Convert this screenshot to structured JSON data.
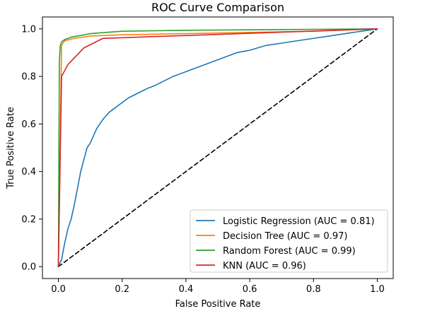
{
  "chart_data": {
    "type": "line",
    "title": "ROC Curve Comparison",
    "xlabel": "False Positive Rate",
    "ylabel": "True Positive Rate",
    "xlim": [
      -0.05,
      1.05
    ],
    "ylim": [
      -0.05,
      1.05
    ],
    "xticks": [
      "0.0",
      "0.2",
      "0.4",
      "0.6",
      "0.8",
      "1.0"
    ],
    "yticks": [
      "0.0",
      "0.2",
      "0.4",
      "0.6",
      "0.8",
      "1.0"
    ],
    "grid": false,
    "legend_position": "lower-right",
    "series": [
      {
        "name": "Logistic Regression (AUC = 0.81)",
        "color": "#1f77b4",
        "x": [
          0.0,
          0.01,
          0.02,
          0.03,
          0.04,
          0.05,
          0.06,
          0.07,
          0.08,
          0.09,
          0.1,
          0.12,
          0.14,
          0.16,
          0.18,
          0.2,
          0.22,
          0.25,
          0.28,
          0.3,
          0.33,
          0.36,
          0.4,
          0.44,
          0.48,
          0.52,
          0.56,
          0.6,
          0.65,
          0.7,
          0.75,
          0.8,
          0.85,
          0.9,
          0.95,
          1.0
        ],
        "y": [
          0.0,
          0.03,
          0.1,
          0.16,
          0.2,
          0.26,
          0.33,
          0.4,
          0.45,
          0.5,
          0.52,
          0.58,
          0.62,
          0.65,
          0.67,
          0.69,
          0.71,
          0.73,
          0.75,
          0.76,
          0.78,
          0.8,
          0.82,
          0.84,
          0.86,
          0.88,
          0.9,
          0.91,
          0.93,
          0.94,
          0.95,
          0.96,
          0.97,
          0.98,
          0.99,
          1.0
        ]
      },
      {
        "name": "Decision Tree (AUC = 0.97)",
        "color": "#ff7f0e",
        "x": [
          0.0,
          0.01,
          0.02,
          0.05,
          0.1,
          0.2,
          0.4,
          0.6,
          0.8,
          0.9,
          1.0
        ],
        "y": [
          0.0,
          0.93,
          0.95,
          0.96,
          0.97,
          0.975,
          0.98,
          0.985,
          0.99,
          0.995,
          1.0
        ]
      },
      {
        "name": "Random Forest (AUC = 0.99)",
        "color": "#2ca02c",
        "x": [
          0.0,
          0.003,
          0.006,
          0.01,
          0.02,
          0.04,
          0.06,
          0.08,
          0.1,
          0.15,
          0.2,
          0.3,
          0.4,
          0.5,
          0.6,
          0.7,
          0.8,
          0.9,
          1.0
        ],
        "y": [
          0.0,
          0.86,
          0.93,
          0.945,
          0.955,
          0.965,
          0.97,
          0.975,
          0.98,
          0.985,
          0.99,
          0.992,
          0.994,
          0.995,
          0.996,
          0.997,
          0.998,
          0.999,
          1.0
        ]
      },
      {
        "name": "KNN (AUC = 0.96)",
        "color": "#d62728",
        "x": [
          0.0,
          0.01,
          0.03,
          0.08,
          0.14,
          1.0
        ],
        "y": [
          0.0,
          0.8,
          0.85,
          0.92,
          0.96,
          1.0
        ]
      },
      {
        "name": "",
        "color": "#000000",
        "dashed": true,
        "x": [
          0.0,
          1.0
        ],
        "y": [
          0.0,
          1.0
        ]
      }
    ]
  }
}
